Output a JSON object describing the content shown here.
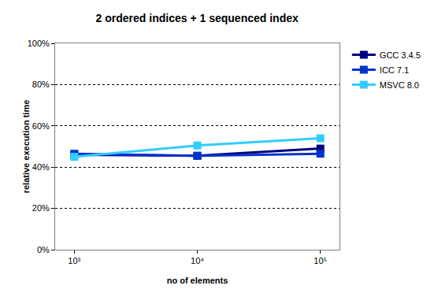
{
  "chart_data": {
    "type": "line",
    "title": "2 ordered indices + 1 sequenced index",
    "x_label": "no of elements",
    "y_label": "relative execution time",
    "categories": [
      "10³",
      "10⁴",
      "10⁵"
    ],
    "series": [
      {
        "name": "GCC 3.4.5",
        "color": "#000080",
        "values": [
          46,
          45.5,
          49
        ]
      },
      {
        "name": "ICC 7.1",
        "color": "#0033cc",
        "values": [
          46.5,
          45.5,
          46.5
        ]
      },
      {
        "name": "MSVC 8.0",
        "color": "#33ccff",
        "values": [
          45,
          50.5,
          54
        ]
      }
    ],
    "ylim": [
      0,
      100
    ],
    "yticks": [
      {
        "value": 0,
        "label": "0%"
      },
      {
        "value": 20,
        "label": "20%"
      },
      {
        "value": 40,
        "label": "40%"
      },
      {
        "value": 60,
        "label": "60%"
      },
      {
        "value": 80,
        "label": "80%"
      },
      {
        "value": 100,
        "label": "100%"
      }
    ],
    "grid": true,
    "legend": "right",
    "marker": "square"
  }
}
